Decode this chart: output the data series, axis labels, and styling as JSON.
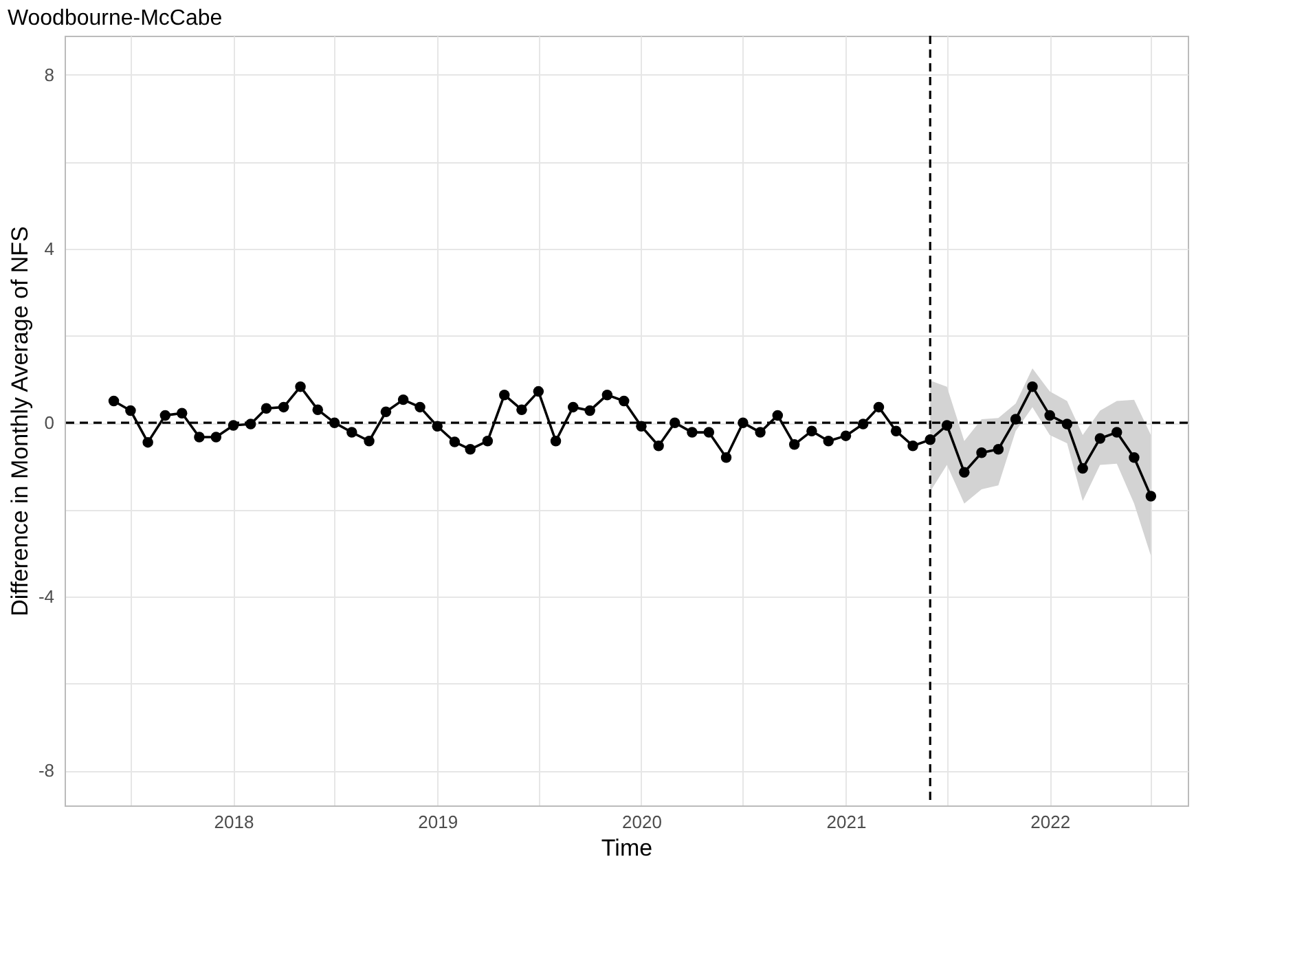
{
  "chart_data": {
    "type": "line",
    "title": "Woodbourne-McCabe",
    "xlabel": "Time",
    "ylabel": "Difference in Monthly Average of NFS",
    "x": [
      "2017-06",
      "2017-07",
      "2017-08",
      "2017-09",
      "2017-10",
      "2017-11",
      "2017-12",
      "2018-01",
      "2018-02",
      "2018-03",
      "2018-04",
      "2018-05",
      "2018-06",
      "2018-07",
      "2018-08",
      "2018-09",
      "2018-10",
      "2018-11",
      "2018-12",
      "2019-01",
      "2019-02",
      "2019-03",
      "2019-04",
      "2019-05",
      "2019-06",
      "2019-07",
      "2019-08",
      "2019-09",
      "2019-10",
      "2019-11",
      "2019-12",
      "2020-01",
      "2020-02",
      "2020-03",
      "2020-04",
      "2020-05",
      "2020-06",
      "2020-07",
      "2020-08",
      "2020-09",
      "2020-10",
      "2020-11",
      "2020-12",
      "2021-01",
      "2021-02",
      "2021-03",
      "2021-04",
      "2021-05",
      "2021-06",
      "2021-07",
      "2021-08",
      "2021-09",
      "2021-10",
      "2021-11",
      "2021-12",
      "2022-01",
      "2022-02",
      "2022-03",
      "2022-04",
      "2022-05",
      "2022-06",
      "2022-07"
    ],
    "series": [
      {
        "color": "#000000",
        "values": [
          0.5,
          0.28,
          -0.45,
          0.17,
          0.22,
          -0.33,
          -0.33,
          -0.06,
          -0.03,
          0.33,
          0.36,
          0.83,
          0.3,
          0,
          -0.22,
          -0.42,
          0.25,
          0.53,
          0.36,
          -0.08,
          -0.44,
          -0.61,
          -0.42,
          0.64,
          0.3,
          0.72,
          -0.42,
          0.36,
          0.28,
          0.64,
          0.5,
          -0.08,
          -0.53,
          0,
          -0.22,
          -0.22,
          -0.8,
          0,
          -0.22,
          0.17,
          -0.5,
          -0.19,
          -0.42,
          -0.3,
          -0.03,
          0.36,
          -0.19,
          -0.53,
          -0.39,
          -0.06,
          -1.14,
          -0.69,
          -0.61,
          0.08,
          0.83,
          0.17,
          -0.03,
          -1.05,
          -0.36,
          -0.22,
          -0.8,
          -1.69
        ],
        "lower": [
          null,
          null,
          null,
          null,
          null,
          null,
          null,
          null,
          null,
          null,
          null,
          null,
          null,
          null,
          null,
          null,
          null,
          null,
          null,
          null,
          null,
          null,
          null,
          null,
          null,
          null,
          null,
          null,
          null,
          null,
          null,
          null,
          null,
          null,
          null,
          null,
          null,
          null,
          null,
          null,
          null,
          null,
          null,
          null,
          null,
          null,
          null,
          null,
          -1.58,
          -0.97,
          -1.86,
          -1.53,
          -1.44,
          -0.19,
          0.36,
          -0.28,
          -0.47,
          -1.8,
          -0.97,
          -0.94,
          -1.86,
          -3.06
        ],
        "upper": [
          null,
          null,
          null,
          null,
          null,
          null,
          null,
          null,
          null,
          null,
          null,
          null,
          null,
          null,
          null,
          null,
          null,
          null,
          null,
          null,
          null,
          null,
          null,
          null,
          null,
          null,
          null,
          null,
          null,
          null,
          null,
          null,
          null,
          null,
          null,
          null,
          null,
          null,
          null,
          null,
          null,
          null,
          null,
          null,
          null,
          null,
          null,
          null,
          0.97,
          0.83,
          -0.42,
          0.08,
          0.11,
          0.44,
          1.25,
          0.72,
          0.5,
          -0.28,
          0.28,
          0.5,
          0.53,
          -0.28
        ]
      }
    ],
    "marker": "circle",
    "line_style": "solid",
    "xlim": [
      "2017-03-05",
      "2022-09-05"
    ],
    "xticks": [
      {
        "value": "2017-07-01",
        "label": null
      },
      {
        "value": "2018-01-01",
        "label": "2018"
      },
      {
        "value": "2018-07-01",
        "label": null
      },
      {
        "value": "2019-01-01",
        "label": "2019"
      },
      {
        "value": "2019-07-01",
        "label": null
      },
      {
        "value": "2020-01-01",
        "label": "2020"
      },
      {
        "value": "2020-07-01",
        "label": null
      },
      {
        "value": "2021-01-01",
        "label": "2021"
      },
      {
        "value": "2021-07-01",
        "label": null
      },
      {
        "value": "2022-01-01",
        "label": "2022"
      },
      {
        "value": "2022-07-01",
        "label": null
      }
    ],
    "ylim": [
      -8.8,
      8.9
    ],
    "yticks": [
      -8,
      {
        "value": -6,
        "label": null
      },
      -4,
      {
        "value": -2,
        "label": null
      },
      0,
      {
        "value": 2,
        "label": null
      },
      4,
      {
        "value": 6,
        "label": null
      },
      8
    ],
    "grid": true,
    "ref_lines": [
      {
        "axis": "y",
        "value": 0,
        "line_style": "dashed",
        "color": "#000000"
      },
      {
        "axis": "x",
        "value": "2021-06",
        "line_style": "dashed",
        "color": "#000000"
      }
    ]
  }
}
